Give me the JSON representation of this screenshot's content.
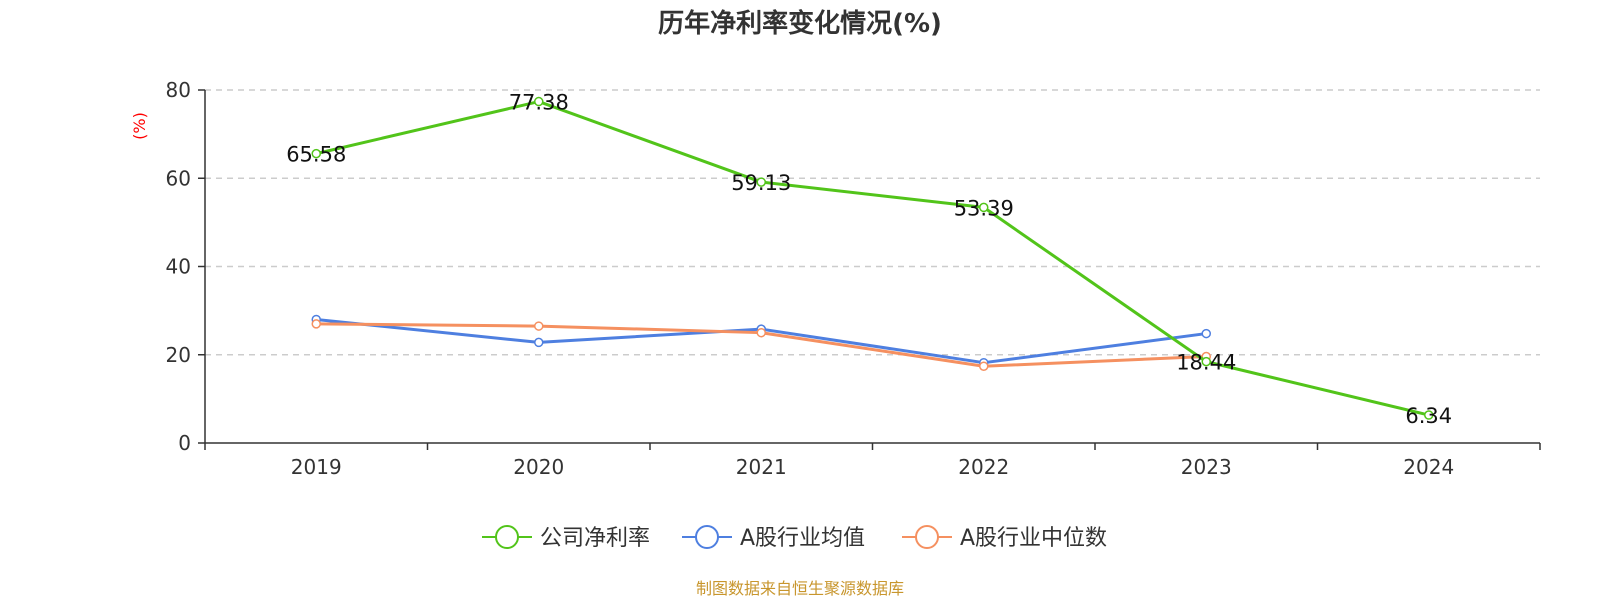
{
  "chart_data": {
    "type": "line",
    "title": "历年净利率变化情况(%)",
    "ylabel": "(%)",
    "xlabel": "",
    "categories": [
      "2019",
      "2020",
      "2021",
      "2022",
      "2023",
      "2024"
    ],
    "ylim": [
      0,
      80
    ],
    "yticks": [
      0,
      20,
      40,
      60,
      80
    ],
    "grid": true,
    "legend_position": "bottom",
    "series": [
      {
        "name": "公司净利率",
        "color": "#52c41a",
        "values": [
          65.58,
          77.38,
          59.13,
          53.39,
          18.44,
          6.34
        ],
        "labels": [
          "65.58",
          "77.38",
          "59.13",
          "53.39",
          "18.44",
          "6.34"
        ]
      },
      {
        "name": "A股行业均值",
        "color": "#4e7fe0",
        "values": [
          28.0,
          22.8,
          25.8,
          18.2,
          24.8,
          null
        ]
      },
      {
        "name": "A股行业中位数",
        "color": "#f59060",
        "values": [
          27.0,
          26.5,
          25.0,
          17.4,
          19.6,
          null
        ]
      }
    ]
  },
  "footer": {
    "source": "制图数据来自恒生聚源数据库"
  },
  "colors": {
    "title": "#333333",
    "ylabel": "#ff0000",
    "axis": "#333333",
    "grid": "#cccccc",
    "footer": "#c8962d"
  }
}
